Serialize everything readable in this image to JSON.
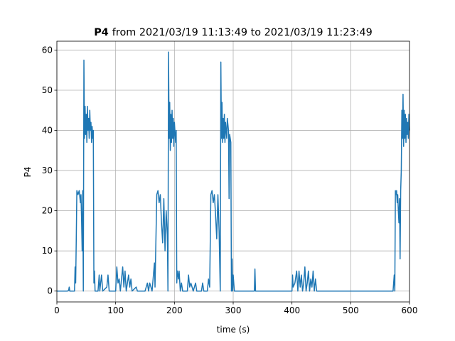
{
  "chart_data": {
    "type": "line",
    "title_name": "P4",
    "title": "from 2021/03/19 11:13:49 to 2021/03/19 11:23:49",
    "xlabel": "time (s)",
    "ylabel": "P4",
    "color": "#1f77b4",
    "grid": true,
    "xlim": [
      0,
      600
    ],
    "xticks": [
      0,
      100,
      200,
      300,
      400,
      500,
      600
    ],
    "ylim": [
      -2.7,
      62.2
    ],
    "yticks": [
      0,
      10,
      20,
      30,
      40,
      50,
      60
    ],
    "x": [
      0,
      18,
      20,
      21,
      22,
      30,
      31,
      32,
      33,
      34,
      36,
      38,
      40,
      41,
      42,
      43,
      44,
      45,
      46,
      47,
      48,
      49,
      50,
      51,
      52,
      53,
      54,
      55,
      56,
      57,
      58,
      59,
      60,
      61,
      62,
      63,
      64,
      65,
      70,
      72,
      73,
      76,
      78,
      85,
      87,
      89,
      100,
      102,
      104,
      106,
      108,
      110,
      112,
      114,
      116,
      118,
      122,
      124,
      126,
      128,
      135,
      137,
      150,
      152,
      154,
      156,
      158,
      160,
      162,
      166,
      167,
      170,
      172,
      174,
      176,
      178,
      180,
      182,
      184,
      186,
      188,
      189,
      190,
      191,
      192,
      193,
      194,
      195,
      196,
      197,
      198,
      199,
      200,
      202,
      203,
      204,
      205,
      207,
      208,
      210,
      212,
      214,
      222,
      224,
      226,
      228,
      232,
      236,
      238,
      246,
      248,
      250,
      256,
      258,
      260,
      262,
      264,
      266,
      268,
      270,
      272,
      274,
      276,
      278,
      279,
      280,
      281,
      282,
      283,
      284,
      285,
      286,
      287,
      289,
      290,
      292,
      293,
      294,
      296,
      297,
      298,
      299,
      300,
      302,
      336,
      337,
      338,
      400,
      401,
      402,
      405,
      408,
      410,
      412,
      414,
      416,
      418,
      420,
      422,
      424,
      426,
      428,
      430,
      432,
      434,
      436,
      438,
      440,
      442,
      572,
      574,
      575,
      576,
      577,
      578,
      579,
      580,
      581,
      582,
      583,
      584,
      585,
      586,
      587,
      588,
      589,
      590,
      591,
      592,
      593,
      594,
      595,
      596,
      597,
      598,
      599,
      600
    ],
    "values": [
      0,
      0,
      0.2,
      1,
      0,
      0,
      6,
      2,
      13,
      25,
      24,
      25,
      22,
      24,
      18,
      10,
      25,
      0,
      57.5,
      38,
      46,
      39,
      44,
      37,
      46,
      40,
      43,
      38,
      45,
      40,
      42,
      37,
      41,
      38,
      40,
      2,
      5,
      0,
      0,
      4,
      0,
      4,
      0,
      1,
      4,
      0,
      0,
      6,
      2,
      3,
      0,
      3,
      6,
      1,
      5,
      0,
      4,
      1,
      3,
      0,
      1,
      0,
      0,
      1,
      2,
      0,
      2,
      1,
      0,
      7,
      1,
      24,
      25,
      22,
      24,
      17,
      12,
      23,
      10,
      20,
      14,
      0,
      59.5,
      38,
      47,
      35,
      44,
      37,
      45,
      38,
      43,
      36,
      42,
      37,
      40,
      2,
      5,
      3,
      5,
      0,
      2,
      0,
      0,
      4,
      1,
      2,
      0,
      2,
      0,
      0,
      2,
      0,
      0,
      3,
      1,
      24,
      25,
      22,
      24,
      19,
      13,
      24,
      15,
      0,
      57,
      38,
      47,
      37,
      43,
      38,
      44,
      37,
      42,
      38,
      43,
      40,
      23,
      39,
      37,
      0,
      8,
      0,
      4,
      0,
      0,
      5.5,
      0,
      0,
      4,
      1,
      2,
      5,
      0,
      5,
      1,
      4,
      0,
      2,
      6,
      0,
      2,
      5,
      0,
      3,
      1,
      5,
      0,
      3,
      0,
      0,
      4,
      0,
      25,
      24,
      25,
      22,
      24,
      20,
      17,
      23,
      8,
      25,
      30,
      45,
      38,
      49,
      36,
      45,
      38,
      44,
      37,
      43,
      39,
      42,
      38,
      44,
      40
    ]
  }
}
